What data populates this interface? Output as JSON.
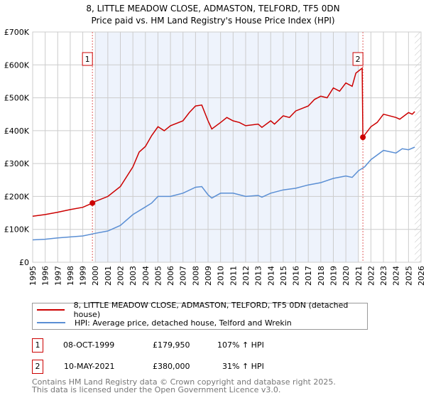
{
  "chart_data": {
    "type": "line",
    "title": "8, LITTLE MEADOW CLOSE, ADMASTON, TELFORD, TF5 0DN",
    "subtitle": "Price paid vs. HM Land Registry's House Price Index (HPI)",
    "xlim": [
      1995,
      2026
    ],
    "ylim": [
      0,
      700000
    ],
    "y_ticks": [
      0,
      100000,
      200000,
      300000,
      400000,
      500000,
      600000,
      700000
    ],
    "y_tick_labels": [
      "£0",
      "£100K",
      "£200K",
      "£300K",
      "£400K",
      "£500K",
      "£600K",
      "£700K"
    ],
    "x_ticks": [
      1995,
      1996,
      1997,
      1998,
      1999,
      2000,
      2001,
      2002,
      2003,
      2004,
      2005,
      2006,
      2007,
      2008,
      2009,
      2010,
      2011,
      2012,
      2013,
      2014,
      2015,
      2016,
      2017,
      2018,
      2019,
      2020,
      2021,
      2022,
      2023,
      2024,
      2025,
      2026
    ],
    "grid": true,
    "shaded_range": [
      2000,
      2021
    ],
    "hatched_from": 2025.5,
    "series": [
      {
        "name": "8, LITTLE MEADOW CLOSE, ADMASTON, TELFORD, TF5 0DN (detached house)",
        "color": "#cc0000",
        "x": [
          1995,
          1996,
          1997,
          1998,
          1999,
          1999.77,
          2000,
          2001,
          2002,
          2003,
          2003.5,
          2004,
          2004.5,
          2005,
          2005.5,
          2006,
          2007,
          2007.5,
          2008,
          2008.5,
          2009,
          2009.3,
          2010,
          2010.5,
          2011,
          2011.5,
          2012,
          2013,
          2013.3,
          2014,
          2014.3,
          2015,
          2015.5,
          2016,
          2017,
          2017.5,
          2018,
          2018.5,
          2019,
          2019.5,
          2020,
          2020.5,
          2020.8,
          2021.3,
          2021.36,
          2022,
          2022.5,
          2023,
          2024,
          2024.3,
          2025,
          2025.3,
          2025.5
        ],
        "y": [
          140,
          145,
          152,
          160,
          167,
          180,
          185,
          200,
          230,
          290,
          335,
          352,
          385,
          412,
          400,
          415,
          430,
          455,
          475,
          478,
          430,
          405,
          425,
          440,
          430,
          425,
          415,
          420,
          410,
          430,
          420,
          445,
          440,
          460,
          475,
          495,
          505,
          500,
          530,
          520,
          545,
          535,
          575,
          590,
          380,
          412,
          425,
          450,
          440,
          435,
          455,
          450,
          458
        ]
      },
      {
        "name": "HPI: Average price, detached house, Telford and Wrekin",
        "color": "#5b8fd4",
        "x": [
          1995,
          1996,
          1997,
          1998,
          1999,
          2000,
          2001,
          2002,
          2003,
          2004,
          2004.5,
          2005,
          2006,
          2007,
          2008,
          2008.5,
          2009,
          2009.3,
          2010,
          2011,
          2012,
          2013,
          2013.3,
          2014,
          2015,
          2016,
          2017,
          2018,
          2019,
          2020,
          2020.5,
          2021,
          2021.5,
          2022,
          2023,
          2024,
          2024.5,
          2025,
          2025.5
        ],
        "y": [
          68,
          70,
          74,
          77,
          80,
          88,
          95,
          112,
          145,
          168,
          180,
          200,
          200,
          210,
          228,
          230,
          205,
          195,
          210,
          210,
          200,
          203,
          198,
          210,
          220,
          225,
          235,
          242,
          255,
          262,
          258,
          278,
          290,
          312,
          340,
          332,
          345,
          342,
          350
        ]
      }
    ],
    "y_unit": "thousands GBP",
    "sales": [
      {
        "label": "1",
        "year": 1999.77,
        "price": 179950,
        "date": "08-OCT-1999",
        "price_text": "£179,950",
        "hpi_text": "107% ↑ HPI"
      },
      {
        "label": "2",
        "year": 2021.36,
        "price": 380000,
        "date": "10-MAY-2021",
        "price_text": "£380,000",
        "hpi_text": "31% ↑ HPI"
      }
    ]
  },
  "legend": {
    "red": "8, LITTLE MEADOW CLOSE, ADMASTON, TELFORD, TF5 0DN (detached house)",
    "blue": "HPI: Average price, detached house, Telford and Wrekin"
  },
  "footer": {
    "line1": "Contains HM Land Registry data © Crown copyright and database right 2025.",
    "line2": "This data is licensed under the Open Government Licence v3.0."
  },
  "colors": {
    "red": "#cc0000",
    "blue": "#5b8fd4",
    "shade": "#eef3fc"
  }
}
